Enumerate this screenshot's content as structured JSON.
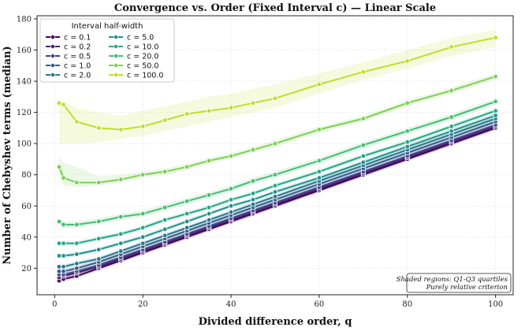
{
  "chart_data": {
    "type": "line",
    "title": "Convergence vs. Order (Fixed Interval c) — Linear Scale",
    "xlabel": "Divided difference order, q",
    "ylabel": "Number of Chebyshev terms (median)",
    "xlim": [
      -4,
      104
    ],
    "ylim": [
      3,
      182
    ],
    "xticks": [
      0,
      20,
      40,
      60,
      80,
      100
    ],
    "yticks": [
      20,
      40,
      60,
      80,
      100,
      120,
      140,
      160,
      180
    ],
    "grid": true,
    "legend_position": "top-left",
    "legend_title": "Interval half-width",
    "note_lines": [
      "Shaded regions: Q1-Q3 quartiles",
      "Purely relative criterion"
    ],
    "x": [
      1,
      2,
      5,
      10,
      15,
      20,
      25,
      30,
      35,
      40,
      45,
      50,
      60,
      70,
      80,
      90,
      100
    ],
    "series": [
      {
        "name": "c = 0.1",
        "color": "#440154",
        "values": [
          12,
          13,
          15,
          20,
          25,
          30,
          35,
          40,
          45,
          50,
          55,
          60,
          70,
          80,
          90,
          100,
          110
        ],
        "band": 1.5
      },
      {
        "name": "c = 0.2",
        "color": "#482475",
        "values": [
          14,
          15,
          17,
          21,
          26,
          31,
          36,
          41,
          46,
          51,
          56,
          61,
          71,
          81,
          91,
          101,
          111
        ],
        "band": 1.5
      },
      {
        "name": "c = 0.5",
        "color": "#414487",
        "values": [
          16,
          16,
          18,
          22,
          27,
          32,
          37,
          42,
          47,
          52,
          57,
          62,
          72,
          82,
          92,
          102,
          112
        ],
        "band": 1.5
      },
      {
        "name": "c = 1.0",
        "color": "#355f8d",
        "values": [
          18,
          18,
          20,
          24,
          29,
          34,
          39,
          44,
          49,
          54,
          59,
          64,
          74,
          84,
          94,
          104,
          114
        ],
        "band": 1.5
      },
      {
        "name": "c = 2.0",
        "color": "#2a788e",
        "values": [
          21,
          21,
          23,
          26,
          31,
          36,
          41,
          46,
          51,
          56,
          61,
          66,
          76,
          86,
          96,
          106,
          116
        ],
        "band": 1.5
      },
      {
        "name": "c = 5.0",
        "color": "#21918c",
        "values": [
          28,
          28,
          29,
          32,
          36,
          40,
          45,
          50,
          55,
          60,
          64,
          69,
          78,
          88,
          98,
          108,
          118
        ],
        "band": 1.5
      },
      {
        "name": "c = 10.0",
        "color": "#22a884",
        "values": [
          36,
          36,
          36,
          39,
          42,
          46,
          51,
          55,
          59,
          64,
          68,
          73,
          82,
          92,
          101,
          111,
          121
        ],
        "band": 1.5
      },
      {
        "name": "c = 20.0",
        "color": "#44bf70",
        "values": [
          50,
          48,
          48,
          50,
          53,
          55,
          59,
          63,
          67,
          71,
          76,
          80,
          89,
          99,
          108,
          117,
          127
        ],
        "band": 2
      },
      {
        "name": "c = 50.0",
        "color": "#7ad151",
        "values": [
          85,
          78,
          75,
          75,
          77,
          80,
          82,
          85,
          89,
          92,
          96,
          100,
          109,
          116,
          126,
          134,
          143
        ],
        "lower": [
          78,
          73,
          72,
          73,
          75,
          78,
          80,
          83,
          87,
          90,
          94,
          98,
          107,
          114,
          124,
          132,
          141
        ],
        "upper": [
          92,
          88,
          85,
          79,
          80,
          82,
          84,
          87,
          91,
          94,
          98,
          102,
          111,
          118,
          128,
          136,
          145
        ]
      },
      {
        "name": "c = 100.0",
        "color": "#bddf26",
        "values": [
          126,
          125,
          114,
          110,
          109,
          111,
          115,
          119,
          121,
          123,
          126,
          129,
          138,
          146,
          153,
          162,
          168
        ],
        "lower": [
          100,
          100,
          100,
          101,
          103,
          105,
          108,
          111,
          114,
          117,
          120,
          123,
          132,
          141,
          148,
          156,
          162
        ],
        "upper": [
          128,
          127,
          123,
          120,
          118,
          121,
          124,
          127,
          130,
          132,
          135,
          138,
          145,
          152,
          160,
          168,
          173
        ]
      }
    ]
  }
}
